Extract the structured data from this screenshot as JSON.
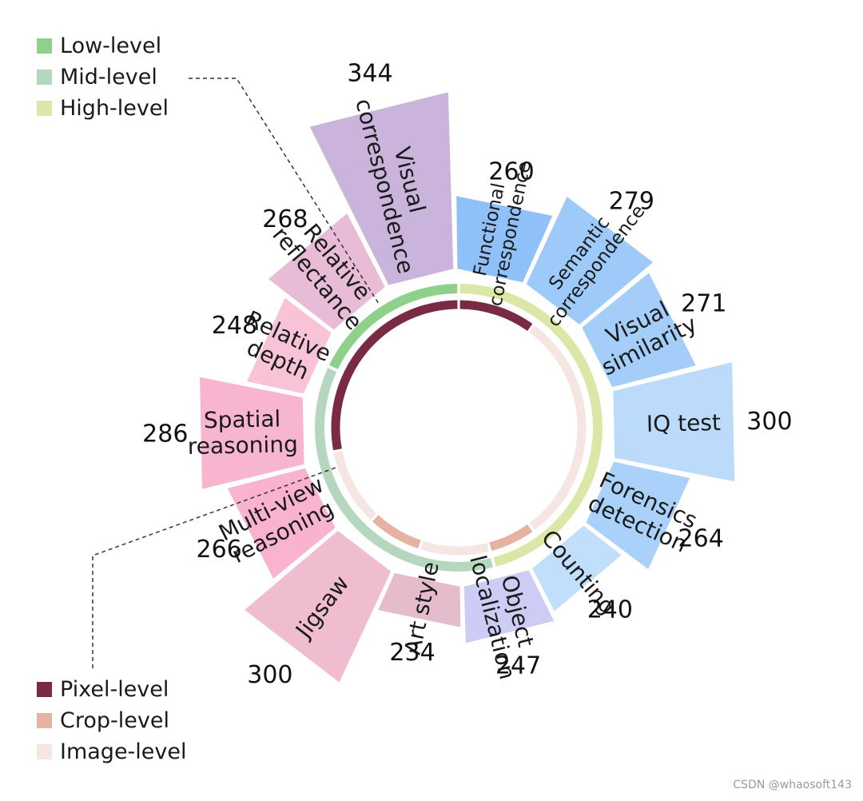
{
  "chart_data": {
    "type": "radial_bar",
    "legend_levels": [
      {
        "name": "Low-level",
        "color": "#8fd18a"
      },
      {
        "name": "Mid-level",
        "color": "#b6d7bf"
      },
      {
        "name": "High-level",
        "color": "#dbe7a6"
      }
    ],
    "legend_granularity": [
      {
        "name": "Pixel-level",
        "color": "#7a2b44"
      },
      {
        "name": "Crop-level",
        "color": "#e6b3a3"
      },
      {
        "name": "Image-level",
        "color": "#f5e6e3"
      }
    ],
    "categories": [
      {
        "label": [
          "Functional",
          "correspondence"
        ],
        "value": 260,
        "color": "#8fc0f8",
        "font": 23
      },
      {
        "label": [
          "Semantic",
          "correspondence"
        ],
        "value": 279,
        "color": "#9dcaf9",
        "font": 23
      },
      {
        "label": [
          "Visual",
          "similarity"
        ],
        "value": 271,
        "color": "#a4cef9",
        "font": 28
      },
      {
        "label": [
          "IQ test"
        ],
        "value": 300,
        "color": "#bcdbfa",
        "font": 28
      },
      {
        "label": [
          "Forensics",
          "detection"
        ],
        "value": 264,
        "color": "#a9d1f9",
        "font": 28
      },
      {
        "label": [
          "Counting"
        ],
        "value": 240,
        "color": "#c1defa",
        "font": 28
      },
      {
        "label": [
          "Object",
          "localization"
        ],
        "value": 247,
        "color": "#ccccf4",
        "font": 28
      },
      {
        "label": [
          "Art style"
        ],
        "value": 234,
        "color": "#e4bccb",
        "font": 28
      },
      {
        "label": [
          "Jigsaw"
        ],
        "value": 300,
        "color": "#f0bcd0",
        "font": 28
      },
      {
        "label": [
          "Multi-view",
          "reasoning"
        ],
        "value": 266,
        "color": "#f9b3ce",
        "font": 28
      },
      {
        "label": [
          "Spatial",
          "reasoning"
        ],
        "value": 286,
        "color": "#f7b5d0",
        "font": 28
      },
      {
        "label": [
          "Relative",
          "depth"
        ],
        "value": 248,
        "color": "#f9c3d7",
        "font": 28
      },
      {
        "label": [
          "Relative",
          "reflectance"
        ],
        "value": 268,
        "color": "#e8bcd6",
        "font": 28
      },
      {
        "label": [
          "Visual",
          "correspondence"
        ],
        "value": 344,
        "color": "#cbb4dc",
        "font": 28
      }
    ],
    "inner_ring_levels": [
      {
        "level": "Low-level",
        "from": 0.82,
        "to": 1.0
      },
      {
        "level": "High-level",
        "from": 0.0,
        "to": 0.46
      },
      {
        "level": "Mid-level",
        "from": 0.46,
        "to": 0.82
      }
    ],
    "inner_ring_granularity": [
      {
        "level": "Pixel-level",
        "from": 0.72,
        "to": 1.0
      },
      {
        "level": "Pixel-level",
        "from": 0.0,
        "to": 0.1
      },
      {
        "level": "Image-level",
        "from": 0.1,
        "to": 0.4
      },
      {
        "level": "Crop-level",
        "from": 0.4,
        "to": 0.46
      },
      {
        "level": "Image-level",
        "from": 0.46,
        "to": 0.55
      },
      {
        "level": "Crop-level",
        "from": 0.55,
        "to": 0.62
      },
      {
        "level": "Image-level",
        "from": 0.62,
        "to": 0.72
      }
    ]
  },
  "watermark": "CSDN @whaosoft143"
}
